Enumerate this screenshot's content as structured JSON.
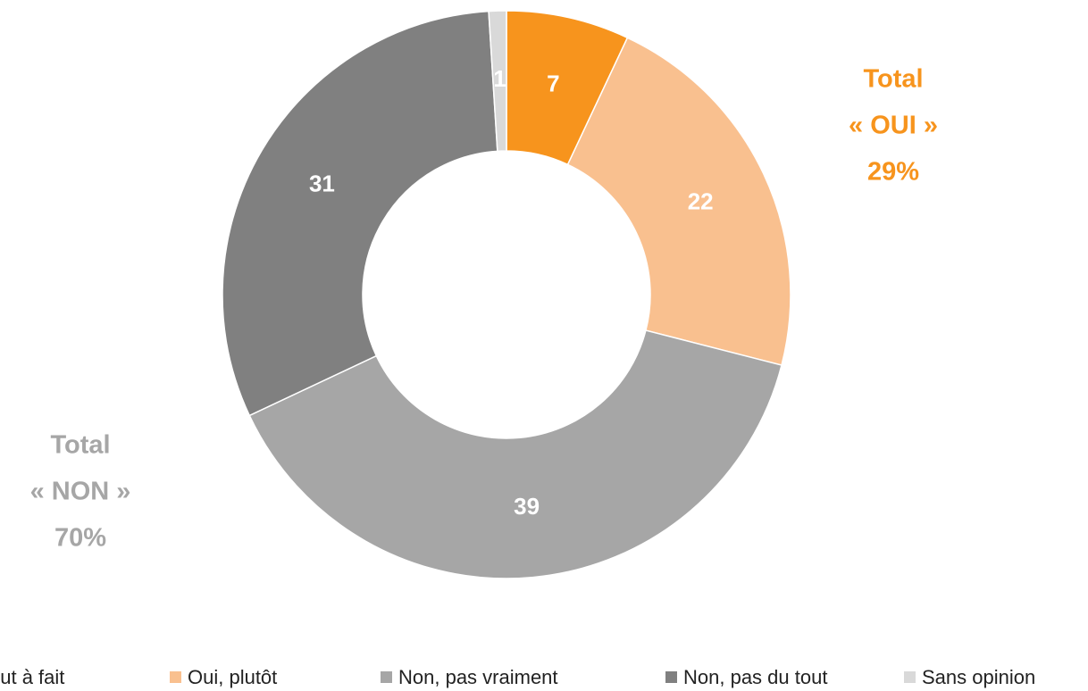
{
  "chart_data": {
    "type": "donut",
    "categories": [
      "out à fait",
      "Oui, plutôt",
      "Non, pas vraiment",
      "Non, pas du tout",
      "Sans opinion"
    ],
    "values": [
      7,
      22,
      39,
      31,
      1
    ],
    "colors": [
      "#f7941d",
      "#f9c08f",
      "#a6a6a6",
      "#808080",
      "#d9d9d9"
    ],
    "annotations": [
      {
        "lines": [
          "Total",
          "« OUI »",
          "29%"
        ],
        "color": "#f7941d"
      },
      {
        "lines": [
          "Total",
          "« NON »",
          "70%"
        ],
        "color": "#a6a6a6"
      }
    ]
  }
}
